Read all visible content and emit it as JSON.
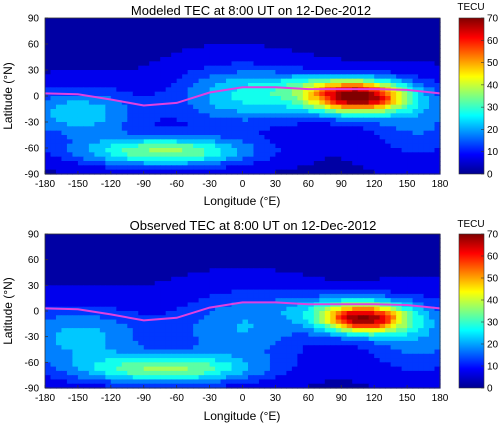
{
  "chart_data": [
    {
      "type": "heatmap",
      "title": "Modeled TEC at 8:00 UT on 12-Dec-2012",
      "xlabel": "Longitude (°E)",
      "ylabel": "Latitude (°N)",
      "xlim": [
        -180,
        180
      ],
      "ylim": [
        -90,
        90
      ],
      "xticks": [
        "-180",
        "-150",
        "-120",
        "-90",
        "-60",
        "-30",
        "0",
        "30",
        "60",
        "90",
        "120",
        "150",
        "180"
      ],
      "yticks": [
        "90",
        "60",
        "30",
        "0",
        "-30",
        "-60",
        "-90"
      ],
      "colorbar": {
        "label": "TECU",
        "min": 0,
        "max": 70,
        "ticks": [
          "70",
          "60",
          "50",
          "40",
          "30",
          "20",
          "10",
          "0"
        ]
      },
      "field_peaks_tecu": [
        {
          "lon": 105,
          "lat": -2,
          "amp": 62,
          "slon": 32,
          "slat": 13
        },
        {
          "lon": 80,
          "lat": 12,
          "amp": 12,
          "slon": 40,
          "slat": 10
        },
        {
          "lon": 40,
          "lat": 0,
          "amp": 10,
          "slon": 40,
          "slat": 20
        },
        {
          "lon": -70,
          "lat": -64,
          "amp": 32,
          "slon": 55,
          "slat": 12
        },
        {
          "lon": -150,
          "lat": -20,
          "amp": 20,
          "slon": 40,
          "slat": 20
        },
        {
          "lon": -10,
          "lat": 0,
          "amp": 16,
          "slon": 40,
          "slat": 25
        },
        {
          "lon": 160,
          "lat": -30,
          "amp": 12,
          "slon": 35,
          "slat": 30
        }
      ],
      "magnetic_equator": {
        "lon": [
          -180,
          -150,
          -120,
          -90,
          -60,
          -30,
          0,
          30,
          60,
          90,
          120,
          150,
          180
        ],
        "lat": [
          3,
          2,
          -4,
          -11,
          -8,
          4,
          10,
          10,
          8,
          8,
          8,
          7,
          3
        ]
      }
    },
    {
      "type": "heatmap",
      "title": "Observed TEC at 8:00 UT on 12-Dec-2012",
      "xlabel": "Longitude (°E)",
      "ylabel": "Latitude (°N)",
      "xlim": [
        -180,
        180
      ],
      "ylim": [
        -90,
        90
      ],
      "xticks": [
        "-180",
        "-150",
        "-120",
        "-90",
        "-60",
        "-30",
        "0",
        "30",
        "60",
        "90",
        "120",
        "150",
        "180"
      ],
      "yticks": [
        "90",
        "60",
        "30",
        "0",
        "-30",
        "-60",
        "-90"
      ],
      "colorbar": {
        "label": "TECU",
        "min": 0,
        "max": 70,
        "ticks": [
          "70",
          "60",
          "50",
          "40",
          "30",
          "20",
          "10",
          "0"
        ]
      },
      "field_peaks_tecu": [
        {
          "lon": 110,
          "lat": -10,
          "amp": 56,
          "slon": 28,
          "slat": 12
        },
        {
          "lon": 90,
          "lat": 5,
          "amp": 14,
          "slon": 40,
          "slat": 12
        },
        {
          "lon": -70,
          "lat": -68,
          "amp": 30,
          "slon": 55,
          "slat": 12
        },
        {
          "lon": -150,
          "lat": -30,
          "amp": 18,
          "slon": 45,
          "slat": 25
        },
        {
          "lon": 0,
          "lat": -20,
          "amp": 16,
          "slon": 45,
          "slat": 30
        },
        {
          "lon": 160,
          "lat": -30,
          "amp": 14,
          "slon": 35,
          "slat": 30
        }
      ],
      "magnetic_equator": {
        "lon": [
          -180,
          -150,
          -120,
          -90,
          -60,
          -30,
          0,
          30,
          60,
          90,
          120,
          150,
          180
        ],
        "lat": [
          3,
          2,
          -4,
          -11,
          -8,
          4,
          10,
          10,
          8,
          8,
          8,
          7,
          3
        ]
      }
    }
  ]
}
